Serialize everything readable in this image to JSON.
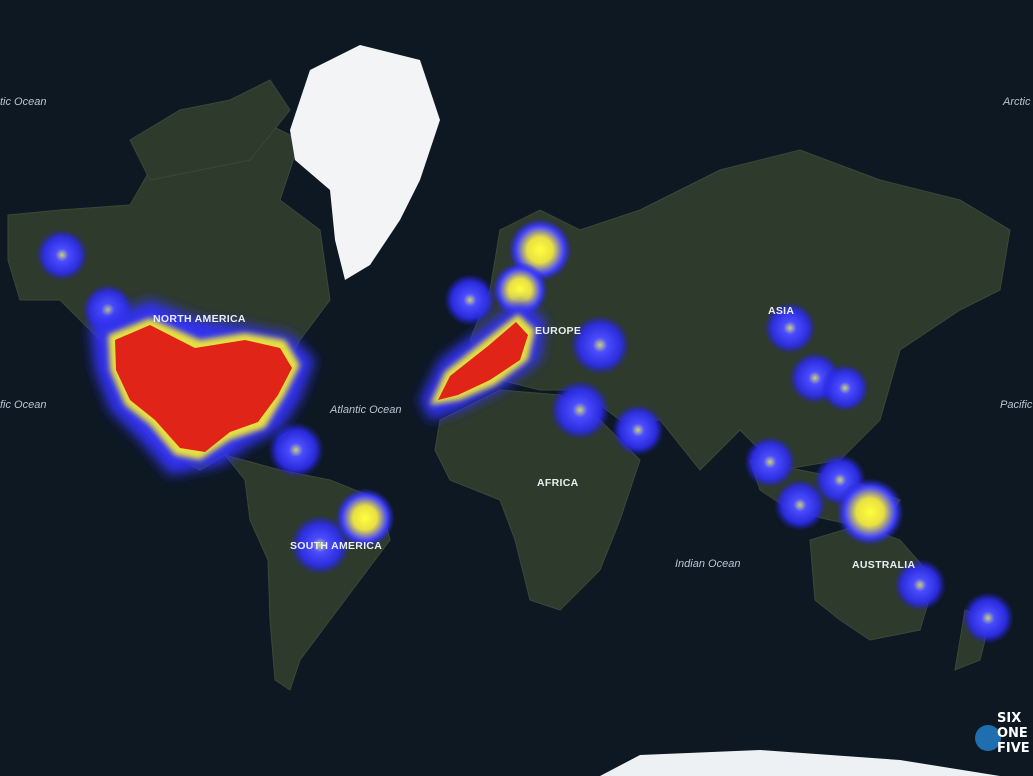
{
  "map_labels": {
    "oceans": [
      "tic Ocean",
      "Arctic",
      "fic Ocean",
      "Pacific",
      "Atlantic Ocean",
      "Indian Ocean"
    ],
    "continents": [
      "NORTH AMERICA",
      "SOUTH AMERICA",
      "EUROPE",
      "AFRICA",
      "ASIA",
      "AUSTRALIA"
    ]
  },
  "logo": [
    "SIX",
    "ONE",
    "FIVE"
  ]
}
